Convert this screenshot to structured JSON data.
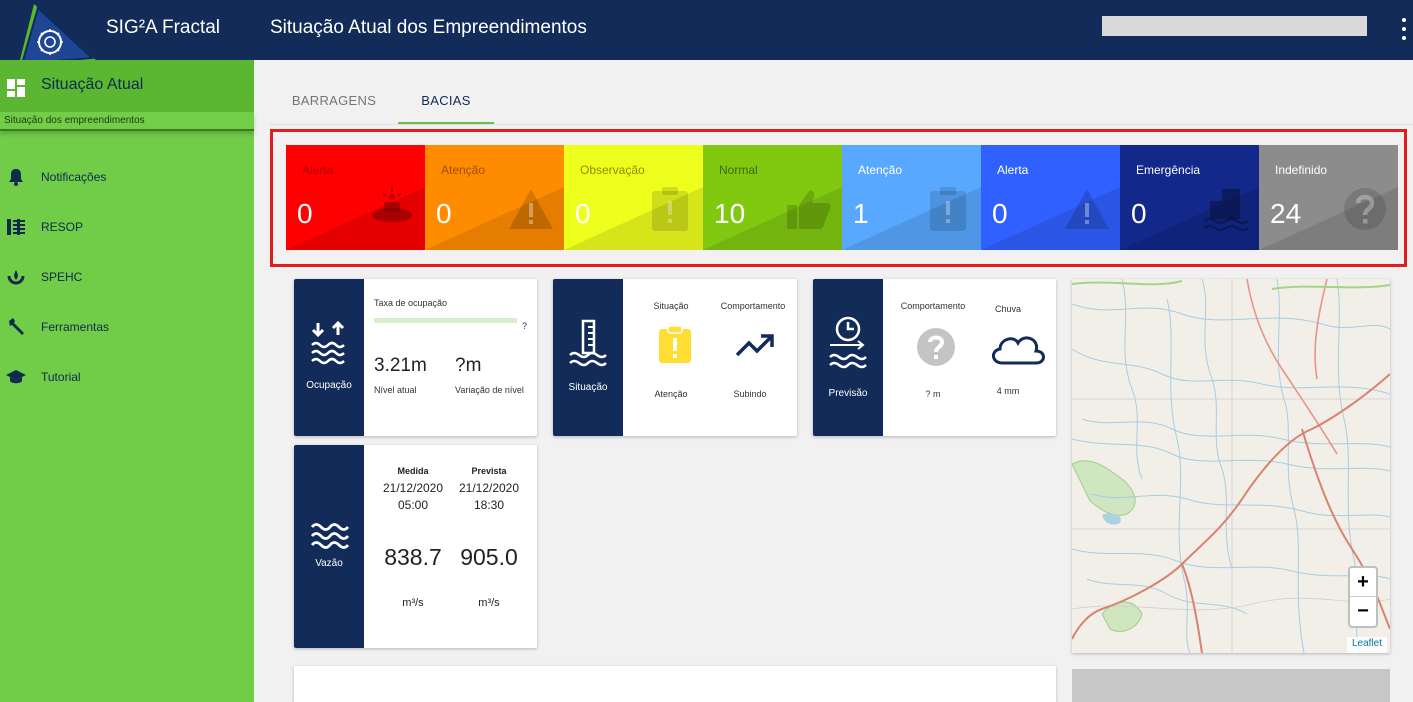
{
  "app": {
    "name": "SIG²A Fractal",
    "page_title": "Situação Atual dos Empreendimentos"
  },
  "sidebar": {
    "active": {
      "label": "Situação Atual",
      "subtitle": "Situação dos empreendimentos"
    },
    "items": [
      {
        "label": "Notificações",
        "icon": "bell-icon"
      },
      {
        "label": "RESOP",
        "icon": "resop-icon"
      },
      {
        "label": "SPEHC",
        "icon": "spehc-icon"
      },
      {
        "label": "Ferramentas",
        "icon": "wrench-icon"
      },
      {
        "label": "Tutorial",
        "icon": "graduation-cap-icon"
      }
    ]
  },
  "tabs": [
    {
      "label": "BARRAGENS",
      "active": false
    },
    {
      "label": "BACIAS",
      "active": true
    }
  ],
  "status_cards": [
    {
      "label": "Alerta",
      "count": "0",
      "color": "#ff0000",
      "text_color": "#b80000",
      "icon": "siren-icon"
    },
    {
      "label": "Atenção",
      "count": "0",
      "color": "#ff8c00",
      "text_color": "#a04f00",
      "icon": "warning-icon"
    },
    {
      "label": "Observação",
      "count": "0",
      "color": "#eeff1e",
      "text_color": "#8a8f00",
      "icon": "clipboard-alert-icon"
    },
    {
      "label": "Normal",
      "count": "10",
      "color": "#80c910",
      "text_color": "#3f6905",
      "icon": "thumbs-up-icon"
    },
    {
      "label": "Atenção",
      "count": "1",
      "color": "#58a8ff",
      "text_color": "#ffffff",
      "icon": "clipboard-alert-icon"
    },
    {
      "label": "Alerta",
      "count": "0",
      "color": "#3060ff",
      "text_color": "#ffffff",
      "icon": "warning-icon"
    },
    {
      "label": "Emergência",
      "count": "0",
      "color": "#12288a",
      "text_color": "#ffffff",
      "icon": "flooded-building-icon"
    },
    {
      "label": "Indefinido",
      "count": "24",
      "color": "#8c8c8c",
      "text_color": "#ffffff",
      "icon": "question-icon"
    }
  ],
  "ocupacao": {
    "title": "Ocupação",
    "taxa_label": "Taxa de ocupação",
    "taxa_value": "?",
    "nivel_atual": "3.21m",
    "nivel_atual_label": "Nível atual",
    "variacao": "?m",
    "variacao_label": "Variação de nível"
  },
  "situacao": {
    "title": "Situação",
    "col1_label": "Situação",
    "col1_value": "Atenção",
    "col2_label": "Comportamento",
    "col2_value": "Subindo"
  },
  "previsao": {
    "title": "Previsão",
    "col1_label": "Comportamento",
    "col1_value": "? m",
    "col2_label": "Chuva",
    "col2_value": "4 mm"
  },
  "vazao": {
    "title": "Vazão",
    "medida_label": "Medida",
    "medida_date": "21/12/2020",
    "medida_time": "05:00",
    "medida_value": "838.7",
    "prevista_label": "Prevista",
    "prevista_date": "21/12/2020",
    "prevista_time": "18:30",
    "prevista_value": "905.0",
    "unit": "m³/s"
  },
  "map": {
    "zoom_in": "+",
    "zoom_out": "−",
    "attribution": "Leaflet"
  }
}
